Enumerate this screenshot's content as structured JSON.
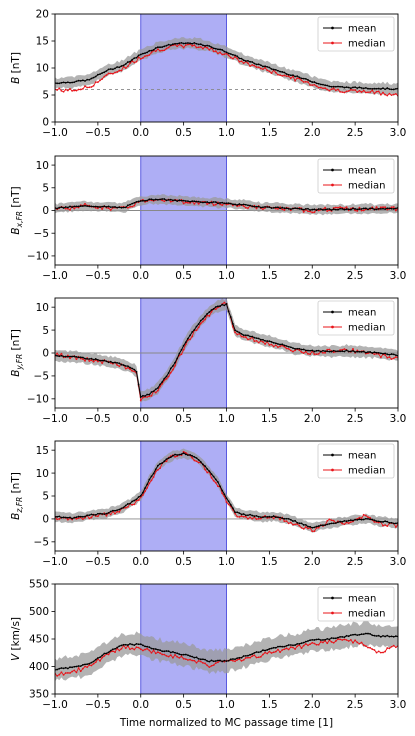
{
  "xlabel": "Time normalized to MC passage time [1]",
  "legend": {
    "mean": "mean",
    "median": "median"
  },
  "colors": {
    "mean": "#000000",
    "median": "#e8141a",
    "band": "#9a9a9a",
    "mc_shade": "#7878ee",
    "mc_edge": "#5a5ae0"
  },
  "chart_data": [
    {
      "type": "line",
      "ylabel": "B [nT]",
      "xlim": [
        -1.0,
        3.0
      ],
      "ylim": [
        0,
        20
      ],
      "xticks": [
        "-1.0",
        "-0.5",
        "0.0",
        "0.5",
        "1.0",
        "1.5",
        "2.0",
        "2.5",
        "3.0"
      ],
      "yticks": [
        "0",
        "5",
        "10",
        "15",
        "20"
      ],
      "reference_line": {
        "y": 6,
        "style": "dashed"
      },
      "shaded_x": [
        0,
        1
      ],
      "legend_position": "top-right",
      "x": [
        -1.0,
        -0.8,
        -0.6,
        -0.4,
        -0.2,
        0.0,
        0.2,
        0.4,
        0.6,
        0.8,
        1.0,
        1.2,
        1.4,
        1.6,
        1.8,
        2.0,
        2.2,
        2.4,
        2.6,
        2.8,
        3.0
      ],
      "series": [
        {
          "name": "mean",
          "values": [
            7.2,
            7.4,
            7.8,
            9.5,
            10.5,
            12.5,
            13.8,
            14.5,
            14.6,
            14.0,
            13.0,
            11.5,
            10.5,
            9.5,
            8.5,
            7.5,
            6.6,
            6.4,
            6.3,
            6.2,
            6.1
          ],
          "band": 1.0
        },
        {
          "name": "median",
          "values": [
            6.0,
            5.8,
            6.5,
            8.5,
            10.0,
            12.0,
            13.4,
            14.0,
            14.2,
            13.6,
            12.5,
            11.0,
            10.0,
            9.0,
            8.0,
            7.0,
            6.0,
            5.8,
            5.6,
            5.4,
            5.0
          ]
        }
      ]
    },
    {
      "type": "line",
      "ylabel": "B_x,FR [nT]",
      "xlim": [
        -1.0,
        3.0
      ],
      "ylim": [
        -12,
        12
      ],
      "xticks": [
        "-1.0",
        "-0.5",
        "0.0",
        "0.5",
        "1.0",
        "1.5",
        "2.0",
        "2.5",
        "3.0"
      ],
      "yticks": [
        "-10",
        "-5",
        "0",
        "5",
        "10"
      ],
      "reference_line": {
        "y": 0,
        "style": "solid"
      },
      "shaded_x": [
        0,
        1
      ],
      "legend_position": "top-right",
      "x": [
        -1.0,
        -0.8,
        -0.6,
        -0.4,
        -0.2,
        0.0,
        0.2,
        0.4,
        0.6,
        0.8,
        1.0,
        1.2,
        1.4,
        1.6,
        1.8,
        2.0,
        2.2,
        2.4,
        2.6,
        2.8,
        3.0
      ],
      "series": [
        {
          "name": "mean",
          "values": [
            0.5,
            0.8,
            1.0,
            0.8,
            0.6,
            2.2,
            2.5,
            2.2,
            2.0,
            1.8,
            1.6,
            1.2,
            0.8,
            0.6,
            0.4,
            0.2,
            0.2,
            0.3,
            0.4,
            0.3,
            0.5
          ],
          "band": 1.0
        },
        {
          "name": "median",
          "values": [
            0.4,
            0.6,
            1.2,
            0.5,
            0.4,
            2.0,
            2.6,
            2.1,
            1.8,
            1.6,
            1.5,
            1.0,
            0.6,
            0.4,
            0.2,
            0.0,
            0.3,
            0.4,
            0.2,
            0.5,
            0.4
          ]
        }
      ]
    },
    {
      "type": "line",
      "ylabel": "B_y,FR [nT]",
      "xlim": [
        -1.0,
        3.0
      ],
      "ylim": [
        -12,
        12
      ],
      "xticks": [
        "-1.0",
        "-0.5",
        "0.0",
        "0.5",
        "1.0",
        "1.5",
        "2.0",
        "2.5",
        "3.0"
      ],
      "yticks": [
        "-10",
        "-5",
        "0",
        "5",
        "10"
      ],
      "reference_line": {
        "y": 0,
        "style": "solid"
      },
      "shaded_x": [
        0,
        1
      ],
      "legend_position": "top-right",
      "x": [
        -1.0,
        -0.8,
        -0.6,
        -0.4,
        -0.2,
        -0.05,
        0.0,
        0.1,
        0.2,
        0.3,
        0.4,
        0.5,
        0.6,
        0.7,
        0.8,
        0.9,
        1.0,
        1.1,
        1.2,
        1.4,
        1.6,
        1.8,
        2.0,
        2.2,
        2.4,
        2.6,
        2.8,
        3.0
      ],
      "series": [
        {
          "name": "mean",
          "values": [
            -0.5,
            -0.8,
            -1.2,
            -1.8,
            -2.5,
            -4.0,
            -9.5,
            -9.0,
            -7.5,
            -5.0,
            -2.0,
            1.5,
            4.5,
            7.0,
            9.0,
            10.3,
            10.6,
            5.0,
            4.0,
            3.0,
            2.0,
            1.0,
            0.5,
            0.3,
            0.5,
            0.2,
            0.0,
            -0.5
          ],
          "band": 1.2
        },
        {
          "name": "median",
          "values": [
            -0.3,
            -1.0,
            -1.5,
            -2.0,
            -2.8,
            -4.5,
            -10.2,
            -9.5,
            -7.8,
            -5.5,
            -2.5,
            1.0,
            4.0,
            6.5,
            8.5,
            10.0,
            10.8,
            4.5,
            3.5,
            2.5,
            1.5,
            0.5,
            0.0,
            0.5,
            0.8,
            0.0,
            -0.5,
            -1.2
          ]
        }
      ]
    },
    {
      "type": "line",
      "ylabel": "B_z,FR [nT]",
      "xlim": [
        -1.0,
        3.0
      ],
      "ylim": [
        -7,
        17
      ],
      "xticks": [
        "-1.0",
        "-0.5",
        "0.0",
        "0.5",
        "1.0",
        "1.5",
        "2.0",
        "2.5",
        "3.0"
      ],
      "yticks": [
        "-5",
        "0",
        "5",
        "10",
        "15"
      ],
      "reference_line": {
        "y": 0,
        "style": "solid"
      },
      "shaded_x": [
        0,
        1
      ],
      "legend_position": "top-right",
      "x": [
        -1.0,
        -0.8,
        -0.6,
        -0.4,
        -0.2,
        0.0,
        0.1,
        0.2,
        0.3,
        0.4,
        0.5,
        0.6,
        0.7,
        0.8,
        0.9,
        1.0,
        1.1,
        1.2,
        1.4,
        1.6,
        1.8,
        2.0,
        2.2,
        2.4,
        2.6,
        2.8,
        3.0
      ],
      "series": [
        {
          "name": "mean",
          "values": [
            0.5,
            0.2,
            0.8,
            1.2,
            2.5,
            5.0,
            8.5,
            11.5,
            13.0,
            14.0,
            14.3,
            13.8,
            12.5,
            10.5,
            8.0,
            4.5,
            1.5,
            1.0,
            0.5,
            0.5,
            -0.5,
            -2.0,
            -1.0,
            -0.5,
            0.0,
            -0.5,
            -1.0
          ],
          "band": 1.0
        },
        {
          "name": "median",
          "values": [
            0.3,
            0.0,
            0.5,
            1.0,
            2.0,
            4.5,
            8.0,
            11.0,
            12.8,
            13.8,
            14.5,
            13.5,
            12.0,
            10.0,
            7.5,
            4.0,
            1.0,
            0.5,
            0.3,
            0.2,
            -1.0,
            -2.5,
            -0.5,
            -1.0,
            0.5,
            -1.0,
            -1.5
          ]
        }
      ]
    },
    {
      "type": "line",
      "ylabel": "V [km/s]",
      "xlim": [
        -1.0,
        3.0
      ],
      "ylim": [
        350,
        550
      ],
      "xticks": [
        "-1.0",
        "-0.5",
        "0.0",
        "0.5",
        "1.0",
        "1.5",
        "2.0",
        "2.5",
        "3.0"
      ],
      "yticks": [
        "350",
        "400",
        "450",
        "500",
        "550"
      ],
      "reference_line": null,
      "shaded_x": [
        0,
        1
      ],
      "legend_position": "top-right",
      "x": [
        -1.0,
        -0.8,
        -0.6,
        -0.4,
        -0.2,
        0.0,
        0.2,
        0.4,
        0.6,
        0.8,
        1.0,
        1.2,
        1.4,
        1.6,
        1.8,
        2.0,
        2.2,
        2.4,
        2.6,
        2.8,
        3.0
      ],
      "series": [
        {
          "name": "mean",
          "values": [
            395,
            398,
            405,
            425,
            440,
            440,
            430,
            425,
            418,
            410,
            410,
            418,
            428,
            435,
            440,
            448,
            450,
            455,
            460,
            455,
            455
          ],
          "band": 20
        },
        {
          "name": "median",
          "values": [
            385,
            390,
            400,
            420,
            435,
            432,
            425,
            418,
            410,
            402,
            410,
            412,
            420,
            428,
            435,
            440,
            445,
            450,
            440,
            425,
            440
          ]
        }
      ]
    }
  ]
}
